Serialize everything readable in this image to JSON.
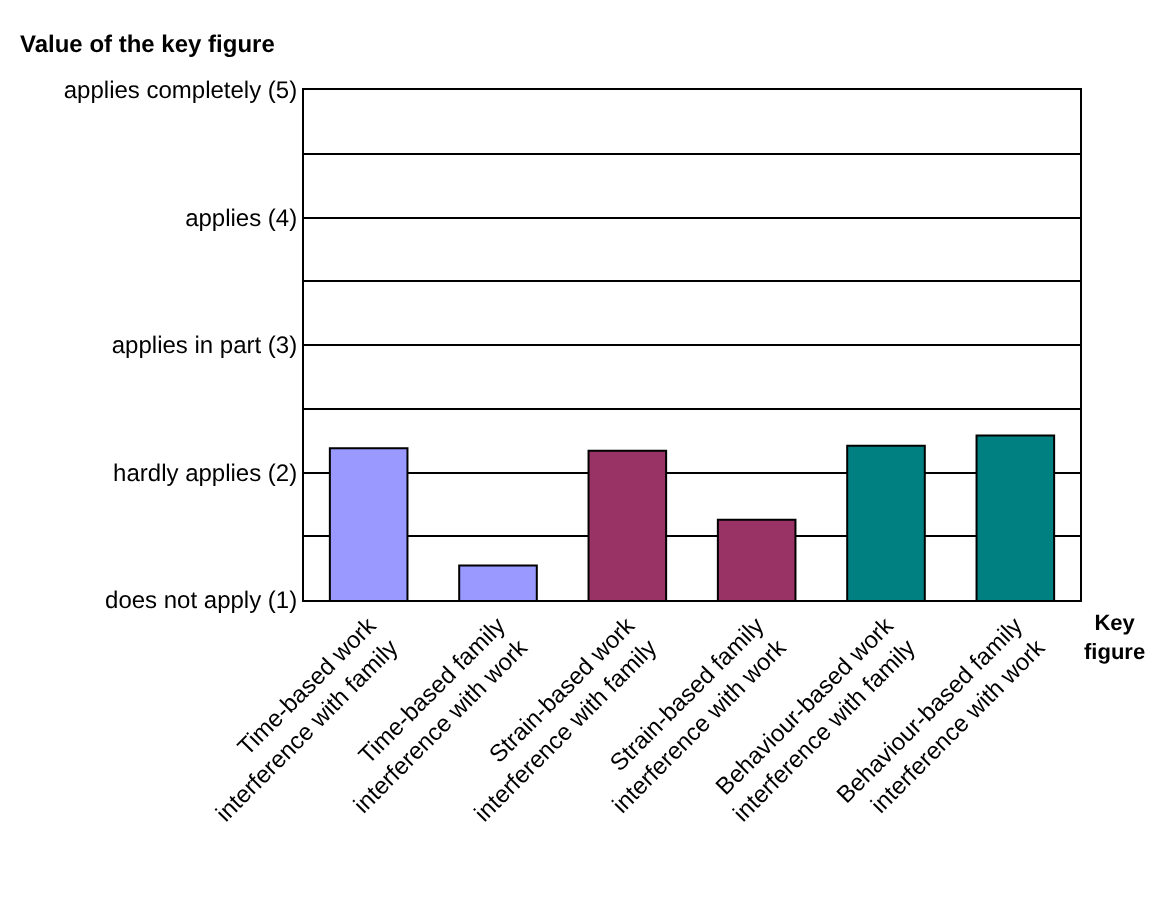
{
  "chart_data": {
    "type": "bar",
    "ylabel": "Value of the key figure",
    "xlabel": "Key figure",
    "categories": [
      "Time-based work interference with family",
      "Time-based family interference with work",
      "Strain-based work interference with family",
      "Strain-based family interference with work",
      "Behaviour-based work interference with family",
      "Behaviour-based family interference with work"
    ],
    "values": [
      2.19,
      1.27,
      2.17,
      1.63,
      2.21,
      2.29
    ],
    "colors": [
      "#9999ff",
      "#9999ff",
      "#993366",
      "#993366",
      "#008080",
      "#008080"
    ],
    "ylim": [
      1,
      5
    ],
    "yticks": [
      {
        "value": 1,
        "label": "does not apply (1)"
      },
      {
        "value": 1.5,
        "label": null
      },
      {
        "value": 2,
        "label": "hardly applies (2)"
      },
      {
        "value": 2.5,
        "label": null
      },
      {
        "value": 3,
        "label": "applies in part (3)"
      },
      {
        "value": 3.5,
        "label": null
      },
      {
        "value": 4,
        "label": "applies (4)"
      },
      {
        "value": 4.5,
        "label": null
      },
      {
        "value": 5,
        "label": "applies completely (5)"
      }
    ],
    "grid": "y"
  }
}
